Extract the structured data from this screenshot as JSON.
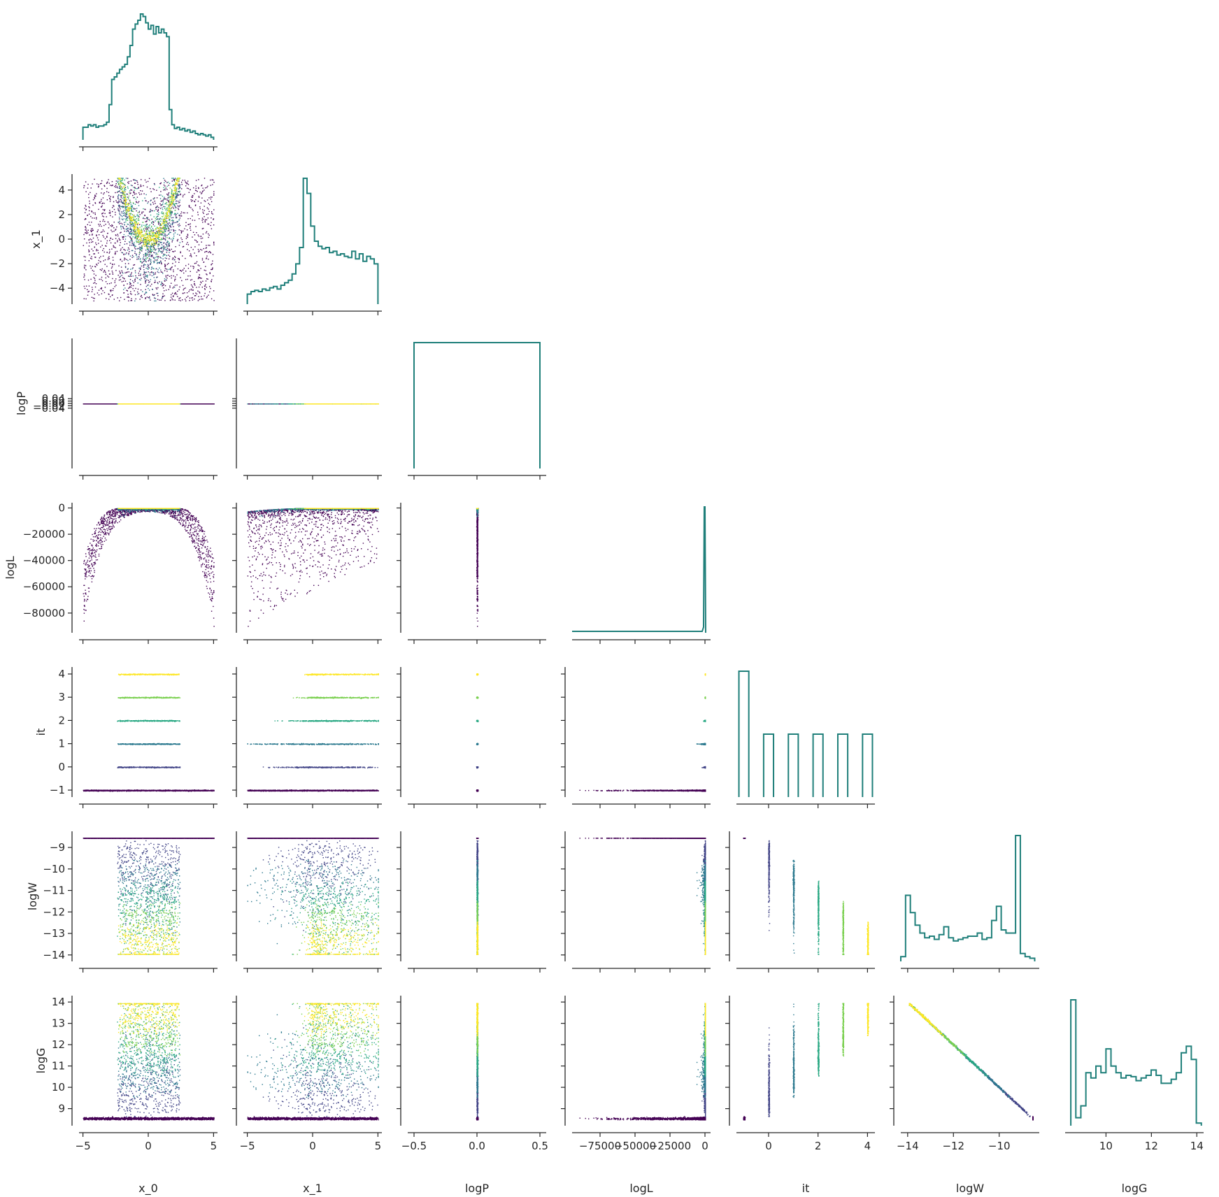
{
  "chart_data": {
    "type": "corner-plot",
    "variables": [
      "x_0",
      "x_1",
      "logP",
      "logL",
      "it",
      "logW",
      "logG"
    ],
    "ranges": {
      "x_0": [
        -5.3,
        5.3
      ],
      "x_1": [
        -5.3,
        5.3
      ],
      "logP": [
        -0.55,
        0.55
      ],
      "logL": [
        -95000,
        4000
      ],
      "it": [
        -1.3,
        4.3
      ],
      "logW": [
        -14.3,
        -8.25
      ],
      "logG": [
        8.2,
        14.3
      ]
    },
    "ticks": {
      "x_0": [
        -5,
        0,
        5
      ],
      "x_1": [
        -5,
        0,
        5
      ],
      "logP": [
        -0.5,
        0.0,
        0.5
      ],
      "logL": [
        -75000,
        -50000,
        -25000,
        0
      ],
      "it": [
        0,
        2,
        4
      ],
      "logW": [
        -14,
        -12,
        -10
      ],
      "logG": [
        10,
        12,
        14
      ]
    },
    "ytick_labels": {
      "x_1": [
        "4",
        "2",
        "0",
        "−2",
        "−4"
      ],
      "logP": [
        "0.04",
        "0.02",
        "0.00",
        "−0.02",
        "−0.04"
      ],
      "logL": [
        "0",
        "−20000",
        "−40000",
        "−60000",
        "−80000"
      ],
      "it": [
        "4",
        "3",
        "2",
        "1",
        "0",
        "−1"
      ],
      "logW": [
        "−9",
        "−10",
        "−11",
        "−12",
        "−13",
        "−14"
      ],
      "logG": [
        "14",
        "13",
        "12",
        "11",
        "10",
        "9"
      ]
    },
    "ytick_values": {
      "x_1": [
        4,
        2,
        0,
        -2,
        -4
      ],
      "logP": [
        0.04,
        0.02,
        0.0,
        -0.02,
        -0.04
      ],
      "logL": [
        0,
        -20000,
        -40000,
        -60000,
        -80000
      ],
      "it": [
        4,
        3,
        2,
        1,
        0,
        -1
      ],
      "logW": [
        -9,
        -10,
        -11,
        -12,
        -13,
        -14
      ],
      "logG": [
        14,
        13,
        12,
        11,
        10,
        9
      ]
    },
    "xtick_labels": {
      "x_0": [
        "−5",
        "0",
        "5"
      ],
      "x_1": [
        "−5",
        "0",
        "5"
      ],
      "logP": [
        "−0.5",
        "0.0",
        "0.5"
      ],
      "logL": [
        "−75000",
        "−50000",
        "−25000",
        "0"
      ],
      "it": [
        "0",
        "2",
        "4"
      ],
      "logW": [
        "−14",
        "−12",
        "−10"
      ],
      "logG": [
        "10",
        "12",
        "14"
      ]
    },
    "histograms": {
      "x_0": {
        "edges": [
          -5,
          5
        ],
        "counts": [
          10,
          10,
          12,
          11,
          12,
          10,
          11,
          11,
          12,
          14,
          28,
          48,
          50,
          53,
          56,
          58,
          60,
          66,
          75,
          88,
          92,
          95,
          100,
          98,
          93,
          88,
          91,
          84,
          90,
          85,
          88,
          85,
          82,
          24,
          12,
          9,
          10,
          8,
          9,
          7,
          8,
          6,
          7,
          5,
          4,
          5,
          4,
          3,
          4,
          2
        ]
      },
      "x_1": {
        "edges": [
          -5,
          5
        ],
        "counts": [
          8,
          10,
          11,
          10,
          12,
          11,
          13,
          14,
          12,
          15,
          17,
          19,
          24,
          32,
          45,
          100,
          88,
          62,
          50,
          46,
          44,
          45,
          41,
          42,
          39,
          40,
          38,
          37,
          42,
          36,
          40,
          34,
          38,
          36,
          32
        ]
      },
      "logP": {
        "edges": [
          -0.5,
          0.5
        ],
        "counts": [
          1
        ]
      },
      "logL": {
        "edges": [
          -95000,
          0
        ],
        "note": "spike at 0"
      },
      "it": {
        "bins": [
          -1,
          0,
          1,
          2,
          3,
          4
        ],
        "counts": [
          2,
          1,
          1,
          1,
          1,
          1
        ]
      },
      "logW": {
        "edges": [
          -14.3,
          -8.45
        ],
        "counts": [
          3,
          42,
          31,
          23,
          18,
          15,
          16,
          14,
          17,
          22,
          15,
          13,
          14,
          15,
          16,
          16,
          18,
          14,
          15,
          26,
          35,
          20,
          18,
          18,
          80,
          5,
          3,
          2
        ]
      },
      "logG": {
        "edges": [
          8.45,
          14.2
        ],
        "counts": [
          95,
          6,
          15,
          40,
          36,
          45,
          40,
          58,
          45,
          40,
          36,
          38,
          37,
          34,
          36,
          38,
          42,
          38,
          32,
          32,
          35,
          40,
          55,
          60,
          50,
          2
        ]
      }
    },
    "color_map": "viridis",
    "colors": {
      "histogram": "#1f7f7a",
      "spine": "#262626"
    }
  }
}
